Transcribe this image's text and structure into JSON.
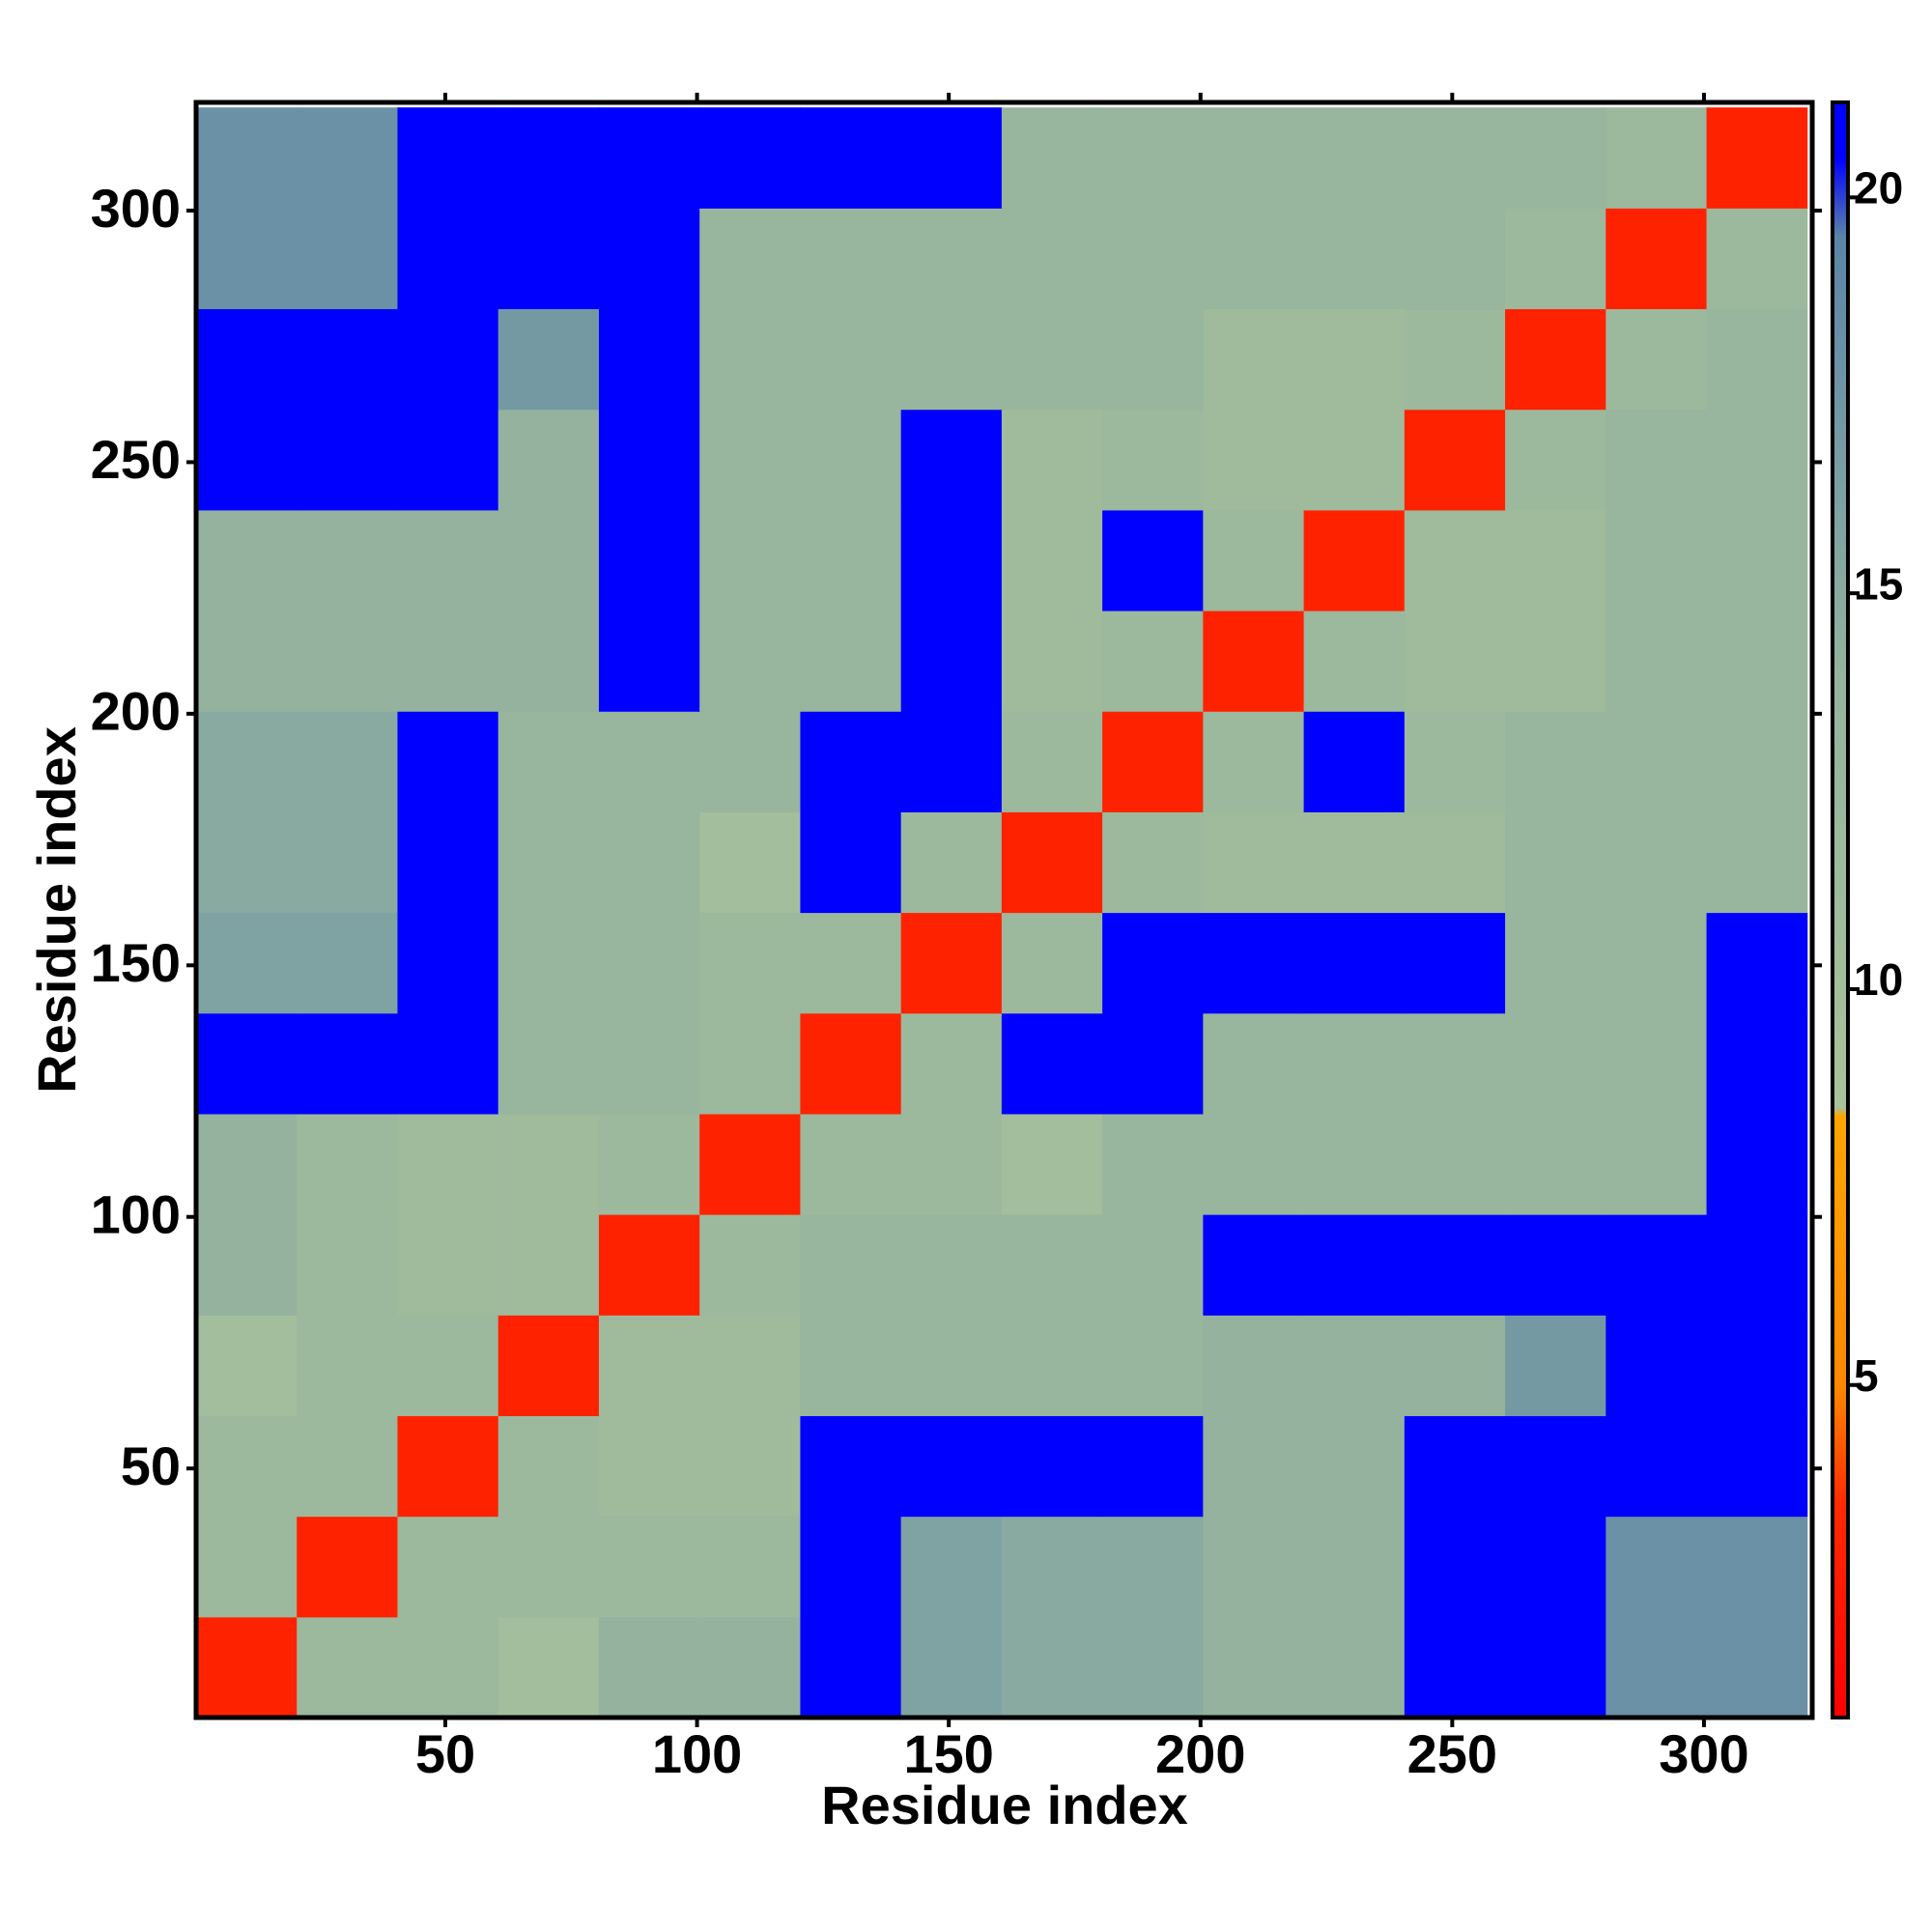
{
  "chart_data": {
    "type": "heatmap",
    "xlabel": "Residue index",
    "ylabel": "Residue index",
    "x": [
      10.5,
      30.5,
      50.5,
      70.5,
      90.5,
      110.5,
      130.5,
      150.5,
      170.5,
      190.5,
      210.5,
      230.5,
      250.5,
      270.5,
      290.5,
      310.5
    ],
    "y": [
      10.5,
      30.5,
      50.5,
      70.5,
      90.5,
      110.5,
      130.5,
      150.5,
      170.5,
      190.5,
      210.5,
      230.5,
      250.5,
      270.5,
      290.5,
      310.5
    ],
    "z": [
      [
        3,
        12,
        12,
        10,
        14,
        14,
        21,
        16,
        15,
        15,
        14,
        14,
        21,
        21,
        18,
        18
      ],
      [
        12,
        3,
        12,
        12,
        12,
        12,
        21,
        16,
        15,
        15,
        14,
        14,
        21,
        21,
        18,
        18
      ],
      [
        12,
        12,
        3,
        12,
        11,
        11,
        21,
        21,
        21,
        21,
        14,
        14,
        21,
        21,
        21,
        21
      ],
      [
        10,
        12,
        12,
        3,
        11,
        11,
        13,
        13,
        13,
        13,
        14,
        14,
        14,
        17,
        21,
        21
      ],
      [
        14,
        12,
        11,
        11,
        3,
        12,
        13,
        13,
        13,
        13,
        21,
        21,
        21,
        21,
        21,
        21
      ],
      [
        14,
        12,
        11,
        11,
        12,
        3,
        12,
        12,
        10,
        13,
        13,
        13,
        13,
        13,
        13,
        21
      ],
      [
        21,
        21,
        21,
        13,
        13,
        12,
        3,
        12,
        21,
        21,
        13,
        13,
        13,
        13,
        13,
        21
      ],
      [
        16,
        16,
        21,
        13,
        13,
        12,
        12,
        3,
        12,
        21,
        21,
        21,
        21,
        13,
        13,
        21
      ],
      [
        15,
        15,
        21,
        13,
        13,
        10,
        21,
        12,
        3,
        12,
        11,
        11,
        11,
        13,
        13,
        13
      ],
      [
        15,
        15,
        21,
        13,
        13,
        13,
        21,
        21,
        12,
        3,
        12,
        21,
        12,
        13,
        13,
        13
      ],
      [
        14,
        14,
        14,
        14,
        21,
        13,
        13,
        21,
        11,
        12,
        3,
        12,
        11,
        11,
        13,
        13
      ],
      [
        14,
        14,
        14,
        14,
        21,
        13,
        13,
        21,
        11,
        21,
        12,
        3,
        11,
        11,
        13,
        13
      ],
      [
        21,
        21,
        21,
        14,
        21,
        13,
        13,
        21,
        11,
        12,
        11,
        11,
        3,
        12,
        13,
        13
      ],
      [
        21,
        21,
        21,
        17,
        21,
        13,
        13,
        13,
        13,
        13,
        11,
        11,
        12,
        3,
        12,
        13
      ],
      [
        18,
        18,
        21,
        21,
        21,
        13,
        13,
        13,
        13,
        13,
        13,
        13,
        13,
        12,
        3,
        12
      ],
      [
        18,
        18,
        21,
        21,
        21,
        21,
        21,
        21,
        13,
        13,
        13,
        13,
        13,
        13,
        12,
        3
      ]
    ],
    "xlim": [
      0.5,
      321.5
    ],
    "ylim": [
      0.5,
      321.5
    ],
    "xticks": [
      50,
      100,
      150,
      200,
      250,
      300
    ],
    "yticks": [
      50,
      100,
      150,
      200,
      250,
      300
    ],
    "zlim": [
      0.8,
      21.2
    ],
    "zticks": [
      5,
      10,
      15,
      20
    ],
    "colorscale": [
      [
        0.8,
        "#ff0000"
      ],
      [
        3.5,
        "#ff2a00"
      ],
      [
        5,
        "#ff8800"
      ],
      [
        8.4,
        "#ffa500"
      ],
      [
        8.5,
        "#a9c29b"
      ],
      [
        14,
        "#94b29e"
      ],
      [
        19.5,
        "#5a85a8"
      ],
      [
        20.5,
        "#0000ff"
      ],
      [
        21.2,
        "#0000ff"
      ]
    ]
  }
}
